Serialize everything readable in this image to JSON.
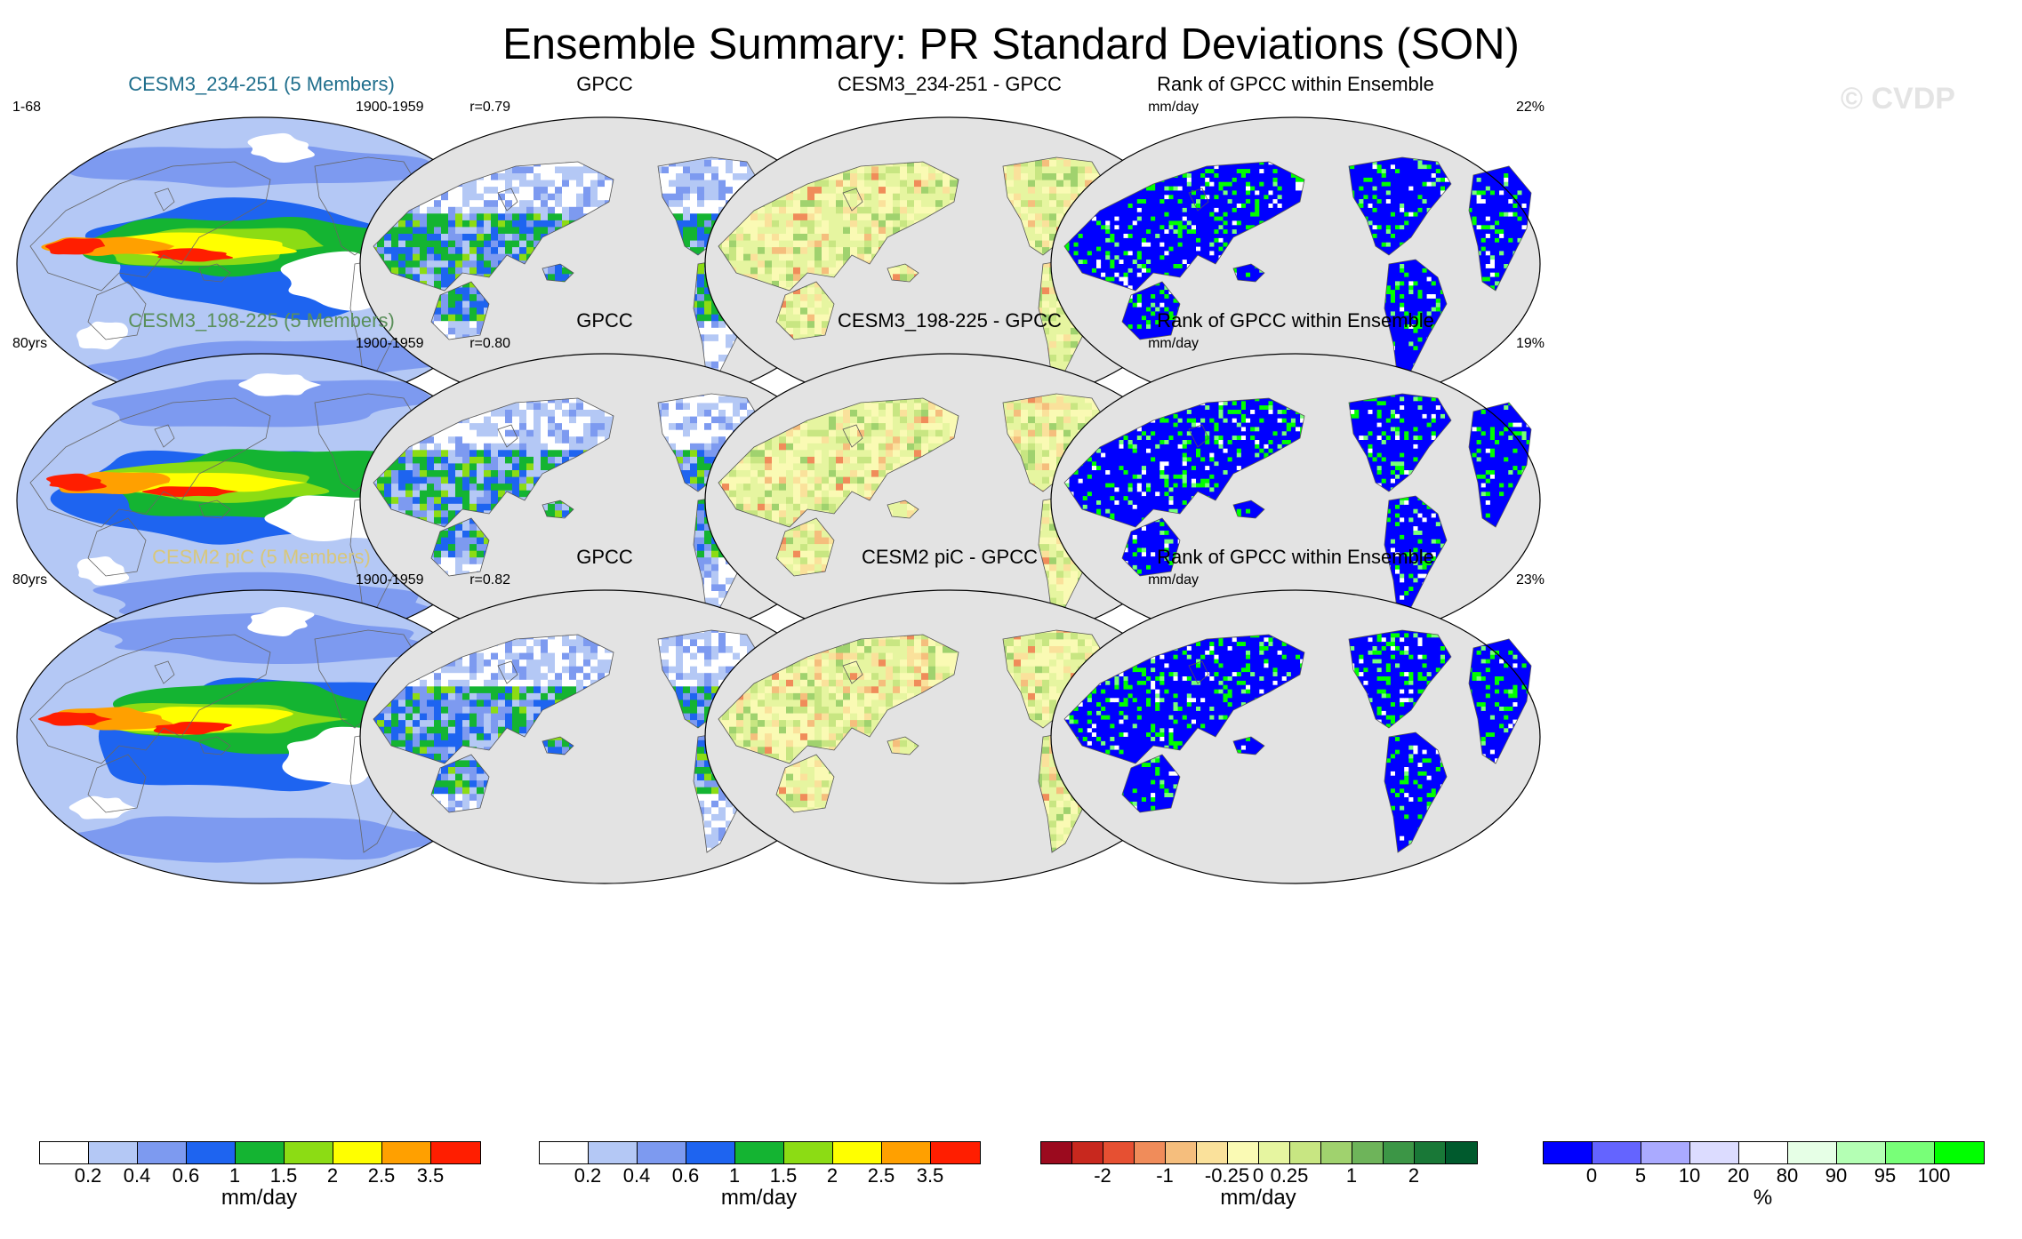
{
  "title": "Ensemble Summary: PR Standard Deviations (SON)",
  "watermark": "© CVDP",
  "rows": [
    {
      "ensemble": {
        "title": "CESM3_234-251 (5 Members)",
        "title_color": "#1f6e8c",
        "left": "1-68",
        "right": "r=0.79"
      },
      "obs": {
        "title": "GPCC",
        "left": "1900-1959",
        "right": ""
      },
      "diff": {
        "title": "CESM3_234-251 - GPCC",
        "left": "",
        "right": "mm/day"
      },
      "rank": {
        "title": "Rank of GPCC within Ensemble",
        "left": "",
        "right": "22%"
      }
    },
    {
      "ensemble": {
        "title": "CESM3_198-225 (5 Members)",
        "title_color": "#5a8f5a",
        "left": "80yrs",
        "right": "r=0.80"
      },
      "obs": {
        "title": "GPCC",
        "left": "1900-1959",
        "right": ""
      },
      "diff": {
        "title": "CESM3_198-225 - GPCC",
        "left": "",
        "right": "mm/day"
      },
      "rank": {
        "title": "Rank of GPCC within Ensemble",
        "left": "",
        "right": "19%"
      }
    },
    {
      "ensemble": {
        "title": "CESM2 piC (5 Members)",
        "title_color": "#d8c77a",
        "left": "80yrs",
        "right": "r=0.82"
      },
      "obs": {
        "title": "GPCC",
        "left": "1900-1959",
        "right": ""
      },
      "diff": {
        "title": "CESM2 piC - GPCC",
        "left": "",
        "right": "mm/day"
      },
      "rank": {
        "title": "Rank of GPCC within Ensemble",
        "left": "",
        "right": "23%"
      }
    }
  ],
  "colorbars": [
    {
      "name": "std-dev-colorbar",
      "colors": [
        "#ffffff",
        "#b4c8f5",
        "#7d9af0",
        "#1e64f0",
        "#14b432",
        "#8cdc14",
        "#ffff00",
        "#ffa000",
        "#ff1e00"
      ],
      "ticks": [
        "0.2",
        "0.4",
        "0.6",
        "1",
        "1.5",
        "2",
        "2.5",
        "3.5"
      ],
      "unit": "mm/day"
    },
    {
      "name": "obs-std-dev-colorbar",
      "colors": [
        "#ffffff",
        "#b4c8f5",
        "#7d9af0",
        "#1e64f0",
        "#14b432",
        "#8cdc14",
        "#ffff00",
        "#ffa000",
        "#ff1e00"
      ],
      "ticks": [
        "0.2",
        "0.4",
        "0.6",
        "1",
        "1.5",
        "2",
        "2.5",
        "3.5"
      ],
      "unit": "mm/day"
    },
    {
      "name": "difference-colorbar",
      "colors": [
        "#9b0a1e",
        "#c8281e",
        "#e65032",
        "#f08c5a",
        "#f5be7d",
        "#fae19b",
        "#fafab4",
        "#e6f5a0",
        "#c8e682",
        "#a0d26e",
        "#6eb45a",
        "#3c9646",
        "#197837",
        "#005a2d"
      ],
      "ticks": [
        "-2",
        "-1",
        "-0.25",
        "0",
        "0.25",
        "1",
        "2"
      ],
      "unit": "mm/day"
    },
    {
      "name": "rank-colorbar",
      "colors": [
        "#0000ff",
        "#6464ff",
        "#aaaaff",
        "#dcdcff",
        "#ffffff",
        "#e6ffe6",
        "#b4ffb4",
        "#78ff78",
        "#00ff00"
      ],
      "ticks": [
        "0",
        "5",
        "10",
        "20",
        "80",
        "90",
        "95",
        "100"
      ],
      "unit": "%"
    }
  ]
}
